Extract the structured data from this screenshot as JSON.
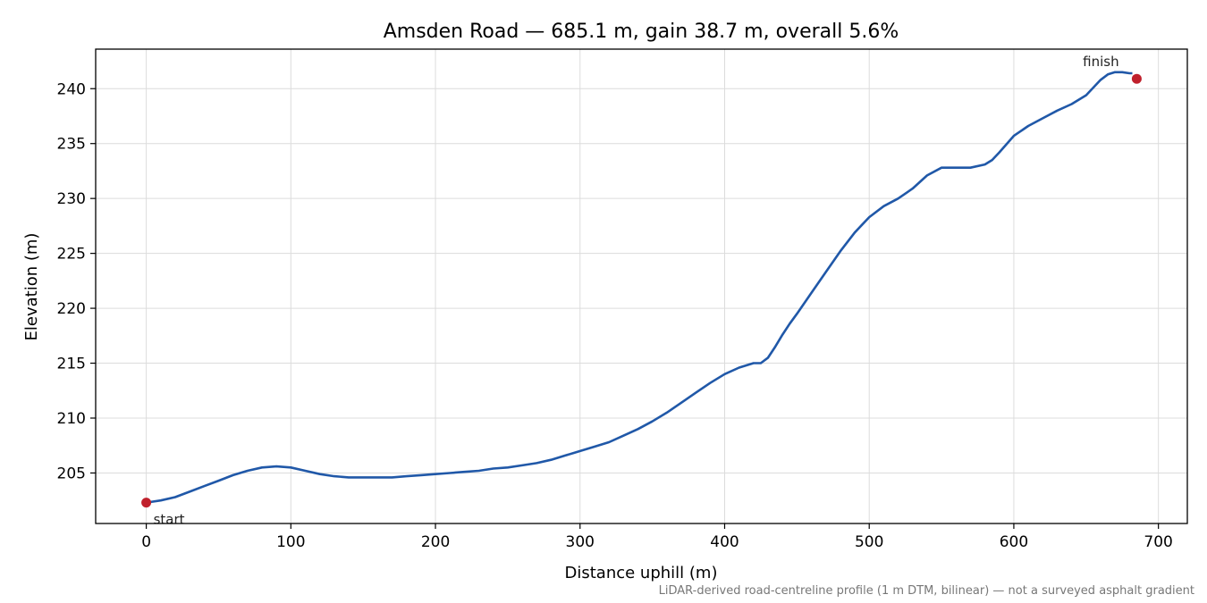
{
  "chart_data": {
    "type": "line",
    "title": "Amsden Road — 685.1 m, gain 38.7 m, overall 5.6%",
    "xlabel": "Distance uphill (m)",
    "ylabel": "Elevation (m)",
    "xlim": [
      -35,
      720
    ],
    "ylim": [
      200.4,
      243.6
    ],
    "xticks": [
      0,
      100,
      200,
      300,
      400,
      500,
      600,
      700
    ],
    "yticks": [
      205,
      210,
      215,
      220,
      225,
      230,
      235,
      240
    ],
    "grid": true,
    "line_color": "#2058a8",
    "marker_color": "#c0202c",
    "series": [
      {
        "x": [
          0,
          10,
          20,
          30,
          40,
          50,
          60,
          70,
          80,
          90,
          100,
          110,
          120,
          130,
          140,
          150,
          160,
          170,
          180,
          190,
          200,
          210,
          220,
          230,
          240,
          250,
          260,
          270,
          280,
          290,
          300,
          310,
          320,
          330,
          340,
          350,
          360,
          370,
          380,
          390,
          400,
          410,
          420,
          425,
          430,
          435,
          440,
          445,
          450,
          460,
          470,
          480,
          490,
          495,
          500,
          510,
          520,
          530,
          540,
          550,
          560,
          570,
          580,
          585,
          590,
          600,
          610,
          620,
          630,
          640,
          650,
          660,
          665,
          670,
          675,
          680,
          682
        ],
        "y": [
          202.3,
          202.5,
          202.8,
          203.3,
          203.8,
          204.3,
          204.8,
          205.2,
          205.5,
          205.6,
          205.5,
          205.2,
          204.9,
          204.7,
          204.6,
          204.6,
          204.6,
          204.6,
          204.7,
          204.8,
          204.9,
          205.0,
          205.1,
          205.2,
          205.4,
          205.5,
          205.7,
          205.9,
          206.2,
          206.6,
          207.0,
          207.4,
          207.8,
          208.4,
          209.0,
          209.7,
          210.5,
          211.4,
          212.3,
          213.2,
          214.0,
          214.6,
          215.0,
          215.0,
          215.5,
          216.5,
          217.6,
          218.6,
          219.5,
          221.4,
          223.3,
          225.2,
          226.9,
          227.6,
          228.3,
          229.3,
          230.0,
          230.9,
          232.1,
          232.8,
          232.8,
          232.8,
          233.1,
          233.5,
          234.2,
          235.7,
          236.6,
          237.3,
          238.0,
          238.6,
          239.4,
          240.8,
          241.3,
          241.5,
          241.5,
          241.4,
          241.4
        ]
      }
    ],
    "start": {
      "x": 0,
      "y": 202.3,
      "label": "start"
    },
    "finish": {
      "x": 685,
      "y": 240.9,
      "label": "finish"
    }
  },
  "footnote": "LiDAR-derived road-centreline profile (1 m DTM, bilinear) — not a surveyed asphalt gradient"
}
